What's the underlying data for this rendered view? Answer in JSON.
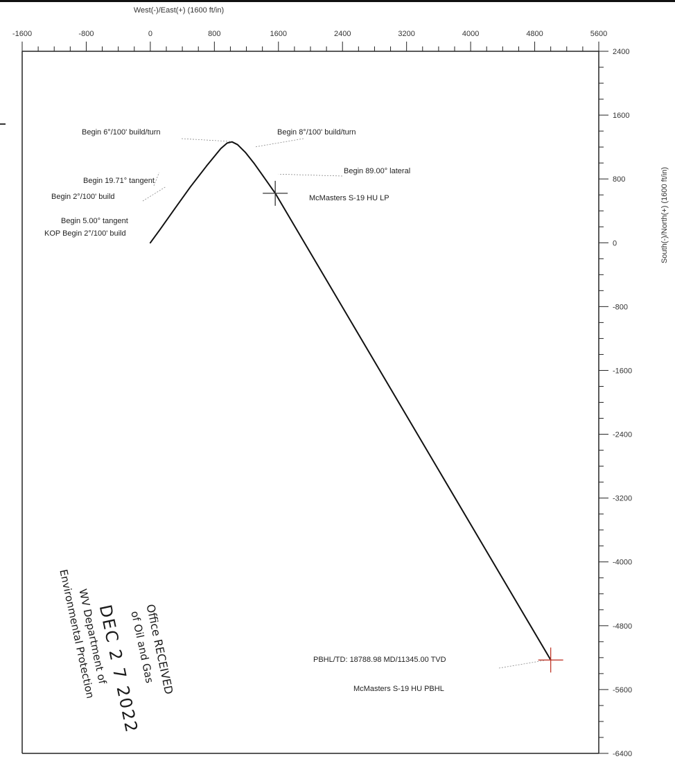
{
  "chart_data": {
    "type": "line",
    "xlabel": "West(-)/East(+) (1600 ft/in)",
    "ylabel": "South(-)/North(+) (1600 ft/in)",
    "xlim": [
      -1600,
      5600
    ],
    "ylim": [
      -6400,
      2400
    ],
    "x_ticks": [
      -1600,
      -800,
      0,
      800,
      1600,
      2400,
      3200,
      4000,
      4800,
      5600
    ],
    "y_ticks": [
      2400,
      1600,
      800,
      0,
      -800,
      -1600,
      -2400,
      -3200,
      -4000,
      -4800,
      -5600,
      -6400
    ],
    "x_tick_labels": [
      "-1600",
      "-800",
      "0",
      "800",
      "1600",
      "2400",
      "3200",
      "4000",
      "4800",
      "5600"
    ],
    "y_tick_labels": [
      "2400",
      "1600",
      "800",
      "0",
      "-800",
      "-1600",
      "-2400",
      "-3200",
      "-4000",
      "-4800",
      "-5600",
      "-6400"
    ],
    "series": [
      {
        "points": [
          {
            "x": 0,
            "y": 0
          },
          {
            "x": 120,
            "y": 165
          },
          {
            "x": 300,
            "y": 420
          },
          {
            "x": 500,
            "y": 700
          },
          {
            "x": 700,
            "y": 960
          },
          {
            "x": 880,
            "y": 1180
          },
          {
            "x": 960,
            "y": 1250
          },
          {
            "x": 1020,
            "y": 1265
          },
          {
            "x": 1090,
            "y": 1230
          },
          {
            "x": 1190,
            "y": 1130
          },
          {
            "x": 1300,
            "y": 990
          },
          {
            "x": 1420,
            "y": 820
          },
          {
            "x": 1560,
            "y": 620
          },
          {
            "x": 5000,
            "y": -5230
          }
        ]
      }
    ],
    "annotations": [
      {
        "text": "Begin 6°/100' build/turn",
        "x": 1000,
        "y": 1270
      },
      {
        "text": "Begin 8°/100' build/turn",
        "x": 1300,
        "y": 1200
      },
      {
        "text": "Begin 19.71° tangent",
        "x": 110,
        "y": 880
      },
      {
        "text": "Begin 2°/100' build",
        "x": 190,
        "y": 700
      },
      {
        "text": "Begin 89.00° lateral",
        "x": 1600,
        "y": 860
      },
      {
        "text": "McMasters S-19 HU LP",
        "x": 1560,
        "y": 620
      },
      {
        "text": "Begin 5.00° tangent",
        "x": 0,
        "y": 180
      },
      {
        "text": "KOP Begin 2°/100' build",
        "x": 0,
        "y": 0
      },
      {
        "text": "PBHL/TD: 18788.98 MD/11345.00 TVD",
        "x": 4950,
        "y": -5230
      },
      {
        "text": "McMasters S-19 HU PBHL",
        "x": 5000,
        "y": -5440
      }
    ],
    "markers": [
      {
        "label": "McMasters S-19 HU LP",
        "x": 1560,
        "y": 620
      },
      {
        "label": "McMasters S-19 HU PBHL",
        "x": 5000,
        "y": -5230
      }
    ],
    "grid": false,
    "colors": {
      "line": "#111111",
      "marker_lp": "#333333",
      "marker_pbhl": "#c0392b",
      "leader": "#888888"
    }
  },
  "stamp": {
    "line1": "Office RECEIVED",
    "line2": "of Oil and Gas",
    "line3": "DEC 2 7 2022",
    "line4": "WV Department of",
    "line5": "Environmental Protection"
  }
}
